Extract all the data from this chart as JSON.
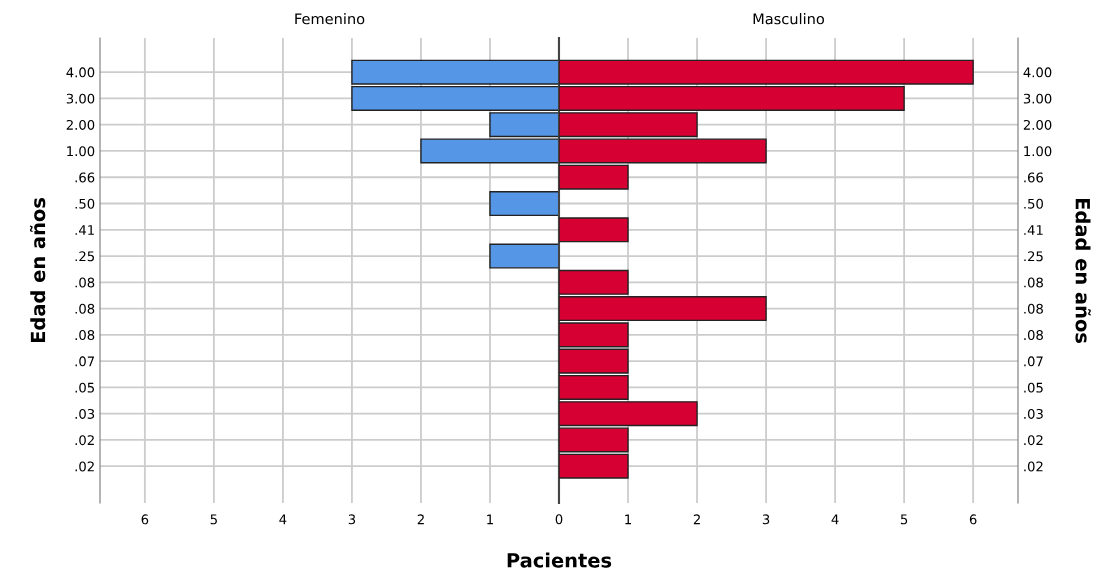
{
  "chart_data": [
    {
      "type": "bar",
      "orientation": "horizontal",
      "title": "Femenino",
      "xlabel": "Pacientes",
      "ylabel": "Edad en años",
      "categories": [
        "4.00",
        "3.00",
        "2.00",
        "1.00",
        ".66",
        ".50",
        ".41",
        ".25",
        ".08",
        ".08",
        ".08",
        ".07",
        ".05",
        ".03",
        ".02",
        ".02"
      ],
      "values": [
        3,
        3,
        1,
        2,
        null,
        1,
        null,
        1,
        null,
        null,
        null,
        null,
        null,
        null,
        null,
        null
      ],
      "color": "#5596e6",
      "xlim": [
        6.65,
        0
      ],
      "xticks": [
        6,
        5,
        4,
        3,
        2,
        1,
        {
          "value": 0,
          "label": null
        }
      ],
      "grid": true
    },
    {
      "type": "bar",
      "orientation": "horizontal",
      "title": "Masculino",
      "y2label": "Edad en años",
      "categories": [
        "4.00",
        "3.00",
        "2.00",
        "1.00",
        ".66",
        ".50",
        ".41",
        ".25",
        ".08",
        ".08",
        ".08",
        ".07",
        ".05",
        ".03",
        ".02",
        ".02"
      ],
      "values": [
        6,
        5,
        2,
        3,
        1,
        null,
        1,
        null,
        1,
        3,
        1,
        1,
        1,
        2,
        1,
        1
      ],
      "color": "#d60032",
      "xlim": [
        0,
        6.65
      ],
      "xticks": [
        0,
        1,
        2,
        3,
        4,
        5,
        6
      ],
      "grid": true
    }
  ]
}
